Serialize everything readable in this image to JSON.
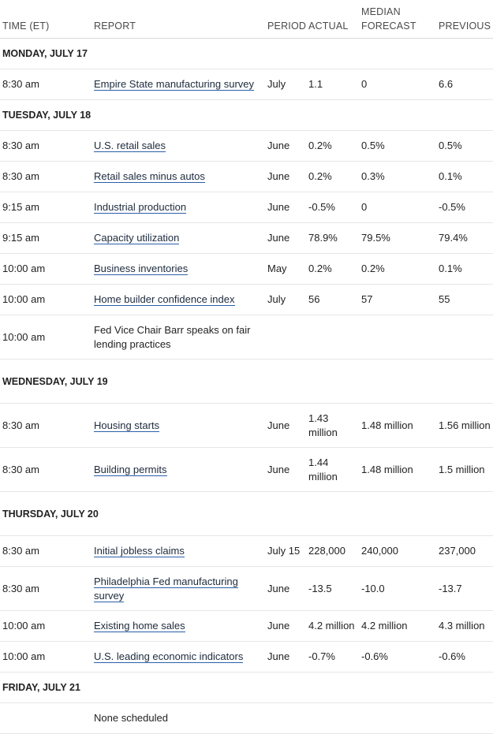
{
  "headers": {
    "time": "TIME (ET)",
    "report": "REPORT",
    "period": "PERIOD",
    "actual": "ACTUAL",
    "median": "MEDIAN FORECAST",
    "previous": "PREVIOUS"
  },
  "days": [
    {
      "label": "MONDAY, JULY 17",
      "rows": [
        {
          "time": "8:30 am",
          "report": "Empire State manufacturing survey",
          "link": true,
          "period": "July",
          "actual": "1.1",
          "median": "0",
          "previous": "6.6"
        }
      ]
    },
    {
      "label": "TUESDAY, JULY 18",
      "rows": [
        {
          "time": "8:30 am",
          "report": "U.S. retail sales",
          "link": true,
          "period": "June",
          "actual": "0.2%",
          "median": "0.5%",
          "previous": "0.5%"
        },
        {
          "time": "8:30 am",
          "report": "Retail sales minus autos",
          "link": true,
          "period": "June",
          "actual": "0.2%",
          "median": "0.3%",
          "previous": "0.1%"
        },
        {
          "time": "9:15 am",
          "report": "Industrial production",
          "link": true,
          "period": "June",
          "actual": "-0.5%",
          "median": "0",
          "previous": "-0.5%"
        },
        {
          "time": "9:15 am",
          "report": "Capacity utilization",
          "link": true,
          "period": "June",
          "actual": "78.9%",
          "median": "79.5%",
          "previous": "79.4%"
        },
        {
          "time": "10:00 am",
          "report": "Business inventories",
          "link": true,
          "period": "May",
          "actual": "0.2%",
          "median": "0.2%",
          "previous": "0.1%"
        },
        {
          "time": "10:00 am",
          "report": "Home builder confidence index",
          "link": true,
          "period": "July",
          "actual": "56",
          "median": "57",
          "previous": "55"
        },
        {
          "time": "10:00 am",
          "report": "Fed Vice Chair Barr speaks on fair lending practices",
          "link": false,
          "period": "",
          "actual": "",
          "median": "",
          "previous": "",
          "tall": true
        }
      ]
    },
    {
      "label": "WEDNESDAY, JULY 19",
      "tall": true,
      "rows": [
        {
          "time": "8:30 am",
          "report": "Housing starts",
          "link": true,
          "period": "June",
          "actual": "1.43 million",
          "median": "1.48 million",
          "previous": "1.56 million",
          "tall": true
        },
        {
          "time": "8:30 am",
          "report": "Building permits",
          "link": true,
          "period": "June",
          "actual": "1.44 million",
          "median": "1.48 million",
          "previous": "1.5 million",
          "tall": true
        }
      ]
    },
    {
      "label": "THURSDAY, JULY 20",
      "tall": true,
      "rows": [
        {
          "time": "8:30 am",
          "report": "Initial jobless claims",
          "link": true,
          "period": "July 15",
          "actual": "228,000",
          "median": "240,000",
          "previous": "237,000"
        },
        {
          "time": "8:30 am",
          "report": "Philadelphia Fed manufacturing survey",
          "link": true,
          "period": "June",
          "actual": "-13.5",
          "median": "-10.0",
          "previous": "-13.7",
          "tall": true
        },
        {
          "time": "10:00 am",
          "report": "Existing home sales",
          "link": true,
          "period": "June",
          "actual": "4.2 million",
          "median": "4.2 million",
          "previous": "4.3 million"
        },
        {
          "time": "10:00 am",
          "report": "U.S. leading economic indicators",
          "link": true,
          "period": "June",
          "actual": "-0.7%",
          "median": "-0.6%",
          "previous": "-0.6%"
        }
      ]
    },
    {
      "label": "FRIDAY, JULY 21",
      "rows": [
        {
          "time": "",
          "report": "None scheduled",
          "link": false,
          "period": "",
          "actual": "",
          "median": "",
          "previous": ""
        }
      ]
    }
  ]
}
